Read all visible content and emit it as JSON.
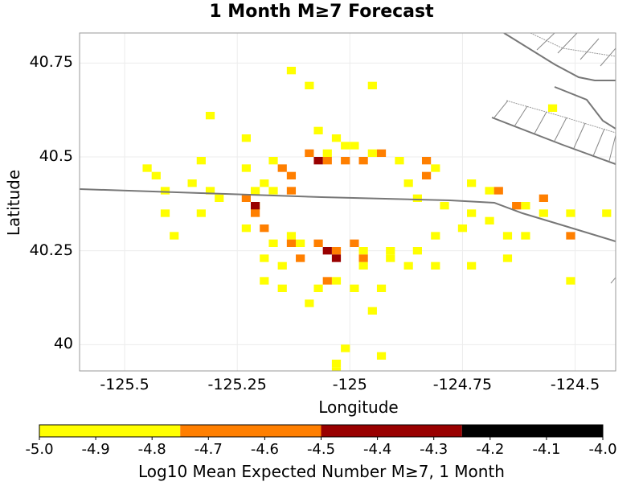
{
  "chart_data": {
    "type": "heatmap",
    "title": "1 Month M≥7 Forecast",
    "xlabel": "Longitude",
    "ylabel": "Latitude",
    "xlim": [
      -125.6,
      -124.41
    ],
    "ylim": [
      39.93,
      40.83
    ],
    "x_ticks": [
      "-125.5",
      "-125.25",
      "-125",
      "-124.75",
      "-124.5"
    ],
    "y_ticks": [
      "40.75",
      "40.5",
      "40.25",
      "40"
    ],
    "grid": true,
    "colorbar": {
      "label": "Log10 Mean Expected Number M≥7, 1 Month",
      "range": [
        -5.0,
        -4.0
      ],
      "ticks": [
        "-5.0",
        "-4.9",
        "-4.8",
        "-4.7",
        "-4.6",
        "-4.5",
        "-4.4",
        "-4.3",
        "-4.2",
        "-4.1",
        "-4.0"
      ],
      "bands": [
        {
          "from": -5.0,
          "to": -4.75,
          "color": "#FFFF00"
        },
        {
          "from": -4.75,
          "to": -4.5,
          "color": "#FF7F00"
        },
        {
          "from": -4.5,
          "to": -4.25,
          "color": "#990000"
        },
        {
          "from": -4.25,
          "to": -4.0,
          "color": "#000000"
        }
      ]
    },
    "cell_size_deg": 0.02,
    "cells": [
      [
        -125.13,
        40.73,
        -4.9
      ],
      [
        -125.09,
        40.69,
        -4.9
      ],
      [
        -124.95,
        40.69,
        -4.9
      ],
      [
        -125.31,
        40.61,
        -4.9
      ],
      [
        -124.55,
        40.63,
        -4.9
      ],
      [
        -125.23,
        40.55,
        -4.9
      ],
      [
        -125.07,
        40.57,
        -4.9
      ],
      [
        -125.03,
        40.55,
        -4.9
      ],
      [
        -125.01,
        40.53,
        -4.9
      ],
      [
        -125.33,
        40.49,
        -4.9
      ],
      [
        -125.23,
        40.47,
        -4.9
      ],
      [
        -125.17,
        40.49,
        -4.9
      ],
      [
        -125.05,
        40.51,
        -4.9
      ],
      [
        -124.99,
        40.53,
        -4.9
      ],
      [
        -124.95,
        40.51,
        -4.9
      ],
      [
        -124.89,
        40.49,
        -4.9
      ],
      [
        -124.81,
        40.47,
        -4.9
      ],
      [
        -125.45,
        40.47,
        -4.9
      ],
      [
        -125.43,
        40.45,
        -4.9
      ],
      [
        -125.41,
        40.41,
        -4.9
      ],
      [
        -125.35,
        40.43,
        -4.9
      ],
      [
        -125.31,
        40.41,
        -4.9
      ],
      [
        -125.29,
        40.39,
        -4.9
      ],
      [
        -125.21,
        40.41,
        -4.9
      ],
      [
        -125.17,
        40.41,
        -4.9
      ],
      [
        -124.73,
        40.43,
        -4.9
      ],
      [
        -124.69,
        40.41,
        -4.9
      ],
      [
        -124.87,
        40.43,
        -4.9
      ],
      [
        -124.85,
        40.39,
        -4.9
      ],
      [
        -124.79,
        40.37,
        -4.9
      ],
      [
        -124.73,
        40.35,
        -4.9
      ],
      [
        -124.69,
        40.33,
        -4.9
      ],
      [
        -124.57,
        40.35,
        -4.9
      ],
      [
        -124.51,
        40.35,
        -4.9
      ],
      [
        -124.43,
        40.35,
        -4.9
      ],
      [
        -125.41,
        40.35,
        -4.9
      ],
      [
        -125.39,
        40.29,
        -4.9
      ],
      [
        -125.33,
        40.35,
        -4.9
      ],
      [
        -125.23,
        40.31,
        -4.9
      ],
      [
        -125.17,
        40.27,
        -4.9
      ],
      [
        -125.13,
        40.29,
        -4.9
      ],
      [
        -125.11,
        40.27,
        -4.9
      ],
      [
        -124.97,
        40.25,
        -4.9
      ],
      [
        -124.91,
        40.25,
        -4.9
      ],
      [
        -124.85,
        40.25,
        -4.9
      ],
      [
        -124.81,
        40.29,
        -4.9
      ],
      [
        -124.75,
        40.31,
        -4.9
      ],
      [
        -124.65,
        40.29,
        -4.9
      ],
      [
        -124.61,
        40.29,
        -4.9
      ],
      [
        -125.19,
        40.23,
        -4.9
      ],
      [
        -125.15,
        40.21,
        -4.9
      ],
      [
        -124.97,
        40.21,
        -4.9
      ],
      [
        -124.91,
        40.23,
        -4.9
      ],
      [
        -124.87,
        40.21,
        -4.9
      ],
      [
        -124.81,
        40.21,
        -4.9
      ],
      [
        -124.73,
        40.21,
        -4.9
      ],
      [
        -124.65,
        40.23,
        -4.9
      ],
      [
        -124.51,
        40.17,
        -4.9
      ],
      [
        -125.19,
        40.17,
        -4.9
      ],
      [
        -125.15,
        40.15,
        -4.9
      ],
      [
        -125.07,
        40.15,
        -4.9
      ],
      [
        -125.03,
        40.17,
        -4.9
      ],
      [
        -124.99,
        40.15,
        -4.9
      ],
      [
        -124.93,
        40.15,
        -4.9
      ],
      [
        -125.09,
        40.11,
        -4.9
      ],
      [
        -124.95,
        40.09,
        -4.9
      ],
      [
        -125.01,
        39.99,
        -4.9
      ],
      [
        -125.03,
        39.95,
        -4.9
      ],
      [
        -124.93,
        39.97,
        -4.9
      ],
      [
        -125.03,
        39.93,
        -4.9
      ],
      [
        -125.19,
        40.43,
        -4.9
      ],
      [
        -125.21,
        40.37,
        -4.9
      ],
      [
        -124.61,
        40.37,
        -4.9
      ],
      [
        -125.15,
        40.47,
        -4.7
      ],
      [
        -125.13,
        40.45,
        -4.7
      ],
      [
        -125.13,
        40.41,
        -4.7
      ],
      [
        -125.09,
        40.51,
        -4.7
      ],
      [
        -125.05,
        40.49,
        -4.7
      ],
      [
        -125.01,
        40.49,
        -4.7
      ],
      [
        -124.97,
        40.49,
        -4.7
      ],
      [
        -124.93,
        40.51,
        -4.7
      ],
      [
        -124.83,
        40.49,
        -4.7
      ],
      [
        -124.83,
        40.45,
        -4.7
      ],
      [
        -124.67,
        40.41,
        -4.7
      ],
      [
        -124.63,
        40.37,
        -4.7
      ],
      [
        -124.57,
        40.39,
        -4.7
      ],
      [
        -124.51,
        40.29,
        -4.7
      ],
      [
        -125.21,
        40.35,
        -4.7
      ],
      [
        -125.19,
        40.31,
        -4.7
      ],
      [
        -125.13,
        40.27,
        -4.7
      ],
      [
        -125.11,
        40.23,
        -4.7
      ],
      [
        -125.07,
        40.27,
        -4.7
      ],
      [
        -125.03,
        40.25,
        -4.7
      ],
      [
        -124.99,
        40.27,
        -4.7
      ],
      [
        -124.97,
        40.23,
        -4.7
      ],
      [
        -125.05,
        40.17,
        -4.7
      ],
      [
        -125.23,
        40.39,
        -4.7
      ],
      [
        -125.07,
        40.49,
        -4.4
      ],
      [
        -125.05,
        40.25,
        -4.4
      ],
      [
        -125.03,
        40.23,
        -4.4
      ],
      [
        -125.21,
        40.37,
        -4.4
      ]
    ],
    "overlays": {
      "fault_line_color": "#777777",
      "fault_boundary_color": "#999999"
    }
  }
}
